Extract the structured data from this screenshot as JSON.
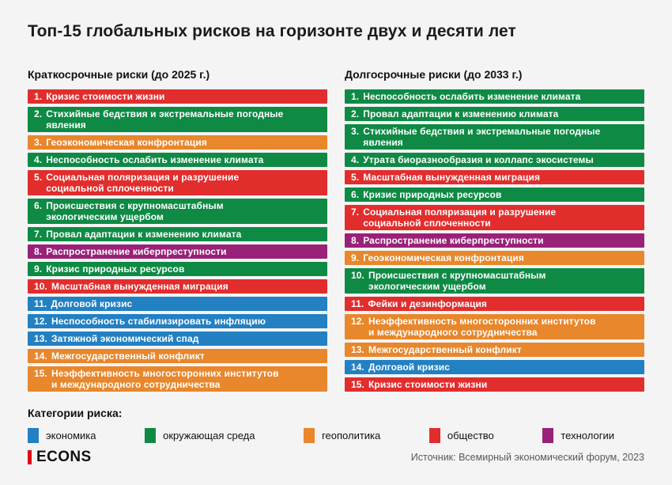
{
  "title": "Топ-15 глобальных рисков на горизонте двух и десяти лет",
  "colors": {
    "background": "#f4f4f4",
    "economy": "#2280c3",
    "environment": "#0e8a45",
    "geopolitics": "#e8872b",
    "society": "#e22d2d",
    "technology": "#9a2178",
    "logo_accent": "#e30613",
    "bar_text": "#ffffff",
    "source_text": "#595959"
  },
  "legend": {
    "heading": "Категории риска:",
    "items": [
      {
        "key": "economy",
        "label": "экономика"
      },
      {
        "key": "environment",
        "label": "окружающая среда"
      },
      {
        "key": "geopolitics",
        "label": "геополитика"
      },
      {
        "key": "society",
        "label": "общество"
      },
      {
        "key": "technology",
        "label": "технологии"
      }
    ]
  },
  "footer": {
    "logo": "ECONS",
    "source": "Источник: Всемирный экономический форум, 2023"
  },
  "chart_data": {
    "type": "table",
    "title": "Топ-15 глобальных рисков на горизонте двух и десяти лет",
    "legend_position": "bottom",
    "category_labels": {
      "economy": "экономика",
      "environment": "окружающая среда",
      "geopolitics": "геополитика",
      "society": "общество",
      "technology": "технологии"
    },
    "series": [
      {
        "name": "Краткосрочные риски (до 2025 г.)",
        "items": [
          {
            "rank": 1,
            "label": "Кризис стоимости жизни",
            "category": "society"
          },
          {
            "rank": 2,
            "label": "Стихийные бедствия и экстремальные погодные явления",
            "category": "environment"
          },
          {
            "rank": 3,
            "label": "Геоэкономическая конфронтация",
            "category": "geopolitics"
          },
          {
            "rank": 4,
            "label": "Неспособность ослабить изменение климата",
            "category": "environment"
          },
          {
            "rank": 5,
            "label": "Социальная поляризация и разрушение\nсоциальной сплоченности",
            "category": "society"
          },
          {
            "rank": 6,
            "label": "Происшествия с крупномасштабным\nэкологическим ущербом",
            "category": "environment"
          },
          {
            "rank": 7,
            "label": "Провал адаптации к изменению климата",
            "category": "environment"
          },
          {
            "rank": 8,
            "label": "Распространение киберпреступности",
            "category": "technology"
          },
          {
            "rank": 9,
            "label": "Кризис природных ресурсов",
            "category": "environment"
          },
          {
            "rank": 10,
            "label": "Масштабная вынужденная миграция",
            "category": "society"
          },
          {
            "rank": 11,
            "label": "Долговой кризис",
            "category": "economy"
          },
          {
            "rank": 12,
            "label": "Неспособность стабилизировать инфляцию",
            "category": "economy"
          },
          {
            "rank": 13,
            "label": "Затяжной экономический спад",
            "category": "economy"
          },
          {
            "rank": 14,
            "label": "Межгосударственный конфликт",
            "category": "geopolitics"
          },
          {
            "rank": 15,
            "label": "Неэффективность многосторонних институтов\nи международного сотрудничества",
            "category": "geopolitics"
          }
        ]
      },
      {
        "name": "Долгосрочные риски (до 2033 г.)",
        "items": [
          {
            "rank": 1,
            "label": "Неспособность ослабить изменение климата",
            "category": "environment"
          },
          {
            "rank": 2,
            "label": "Провал адаптации к изменению климата",
            "category": "environment"
          },
          {
            "rank": 3,
            "label": "Стихийные бедствия и экстремальные погодные явления",
            "category": "environment"
          },
          {
            "rank": 4,
            "label": "Утрата биоразнообразия и коллапс экосистемы",
            "category": "environment"
          },
          {
            "rank": 5,
            "label": "Масштабная вынужденная миграция",
            "category": "society"
          },
          {
            "rank": 6,
            "label": "Кризис природных ресурсов",
            "category": "environment"
          },
          {
            "rank": 7,
            "label": "Социальная поляризация и разрушение\nсоциальной сплоченности",
            "category": "society"
          },
          {
            "rank": 8,
            "label": "Распространение киберпреступности",
            "category": "technology"
          },
          {
            "rank": 9,
            "label": "Геоэкономическая конфронтация",
            "category": "geopolitics"
          },
          {
            "rank": 10,
            "label": "Происшествия с крупномасштабным\nэкологическим ущербом",
            "category": "environment"
          },
          {
            "rank": 11,
            "label": "Фейки и дезинформация",
            "category": "society"
          },
          {
            "rank": 12,
            "label": "Неэффективность многосторонних институтов\nи международного сотрудничества",
            "category": "geopolitics"
          },
          {
            "rank": 13,
            "label": "Межгосударственный конфликт",
            "category": "geopolitics"
          },
          {
            "rank": 14,
            "label": "Долговой кризис",
            "category": "economy"
          },
          {
            "rank": 15,
            "label": "Кризис стоимости жизни",
            "category": "society"
          }
        ]
      }
    ]
  }
}
